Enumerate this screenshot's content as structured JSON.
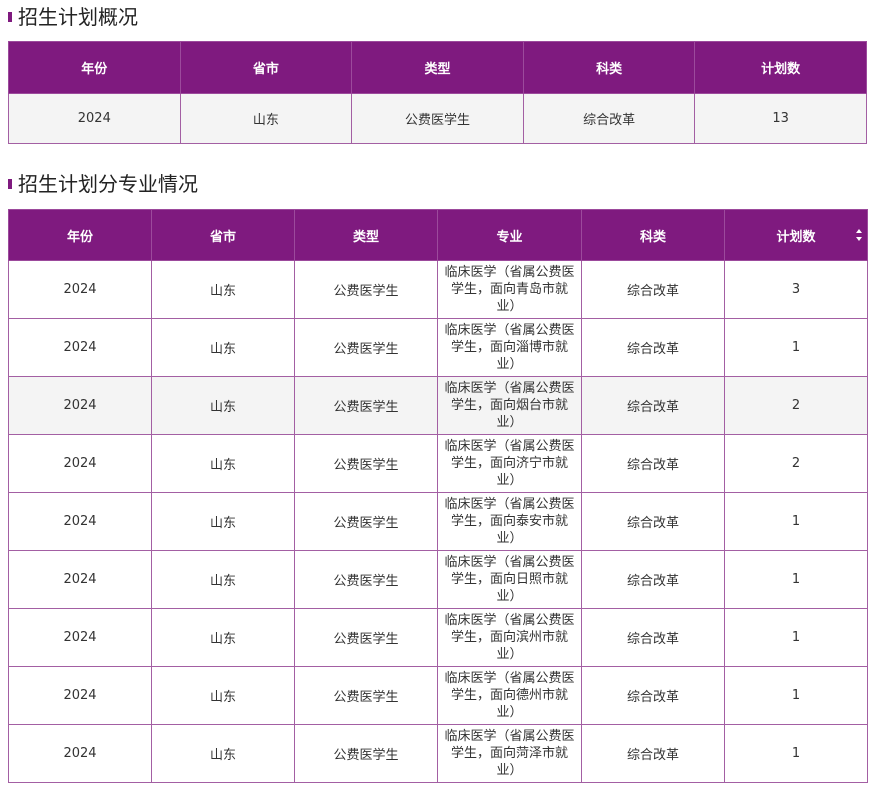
{
  "overview": {
    "title": "招生计划概况",
    "headers": [
      "年份",
      "省市",
      "类型",
      "科类",
      "计划数"
    ],
    "rows": [
      [
        "2024",
        "山东",
        "公费医学生",
        "综合改革",
        "13"
      ]
    ]
  },
  "detail": {
    "title": "招生计划分专业情况",
    "headers": [
      "年份",
      "省市",
      "类型",
      "专业",
      "科类",
      "计划数"
    ],
    "rows": [
      {
        "year": "2024",
        "province": "山东",
        "type": "公费医学生",
        "major_l1": "临床医学（省属公费医",
        "major_l2": "学生，面向青岛市就",
        "major_l3": "业）",
        "category": "综合改革",
        "count": "3"
      },
      {
        "year": "2024",
        "province": "山东",
        "type": "公费医学生",
        "major_l1": "临床医学（省属公费医",
        "major_l2": "学生，面向淄博市就",
        "major_l3": "业）",
        "category": "综合改革",
        "count": "1"
      },
      {
        "year": "2024",
        "province": "山东",
        "type": "公费医学生",
        "major_l1": "临床医学（省属公费医",
        "major_l2": "学生，面向烟台市就",
        "major_l3": "业）",
        "category": "综合改革",
        "count": "2"
      },
      {
        "year": "2024",
        "province": "山东",
        "type": "公费医学生",
        "major_l1": "临床医学（省属公费医",
        "major_l2": "学生，面向济宁市就",
        "major_l3": "业）",
        "category": "综合改革",
        "count": "2"
      },
      {
        "year": "2024",
        "province": "山东",
        "type": "公费医学生",
        "major_l1": "临床医学（省属公费医",
        "major_l2": "学生，面向泰安市就",
        "major_l3": "业）",
        "category": "综合改革",
        "count": "1"
      },
      {
        "year": "2024",
        "province": "山东",
        "type": "公费医学生",
        "major_l1": "临床医学（省属公费医",
        "major_l2": "学生，面向日照市就",
        "major_l3": "业）",
        "category": "综合改革",
        "count": "1"
      },
      {
        "year": "2024",
        "province": "山东",
        "type": "公费医学生",
        "major_l1": "临床医学（省属公费医",
        "major_l2": "学生，面向滨州市就",
        "major_l3": "业）",
        "category": "综合改革",
        "count": "1"
      },
      {
        "year": "2024",
        "province": "山东",
        "type": "公费医学生",
        "major_l1": "临床医学（省属公费医",
        "major_l2": "学生，面向德州市就",
        "major_l3": "业）",
        "category": "综合改革",
        "count": "1"
      },
      {
        "year": "2024",
        "province": "山东",
        "type": "公费医学生",
        "major_l1": "临床医学（省属公费医",
        "major_l2": "学生，面向菏泽市就",
        "major_l3": "业）",
        "category": "综合改革",
        "count": "1"
      }
    ],
    "sort_icon": "sort-updown-icon",
    "highlighted_row": 2
  },
  "colors": {
    "header_bg": "#7f1a7f",
    "header_text": "#ffffff",
    "border": "#a35fa3",
    "alt_row_bg": "#f4f4f4"
  }
}
